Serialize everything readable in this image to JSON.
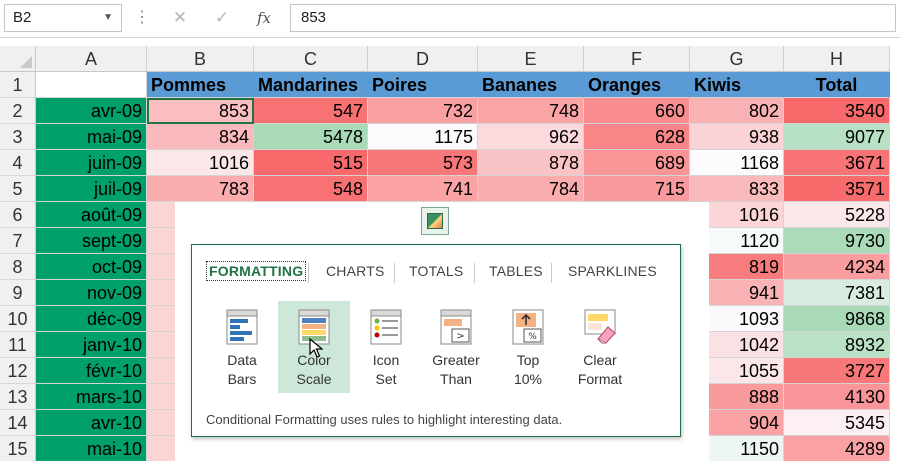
{
  "formula_bar": {
    "name_box": "B2",
    "cancel_glyph": "✕",
    "confirm_glyph": "✓",
    "fx_label": "fx",
    "formula": "853"
  },
  "columns": [
    "A",
    "B",
    "C",
    "D",
    "E",
    "F",
    "G",
    "H"
  ],
  "rows": [
    "1",
    "2",
    "3",
    "4",
    "5",
    "6",
    "7",
    "8",
    "9",
    "10",
    "11",
    "12",
    "13",
    "14",
    "15"
  ],
  "table": {
    "headers": [
      "Pommes",
      "Mandarines",
      "Poires",
      "Bananes",
      "Oranges",
      "Kiwis",
      "Total"
    ],
    "dates": [
      "avr-09",
      "mai-09",
      "juin-09",
      "juil-09",
      "août-09",
      "sept-09",
      "oct-09",
      "nov-09",
      "déc-09",
      "janv-10",
      "févr-10",
      "mars-10",
      "avr-10",
      "mai-10"
    ],
    "data_rows": [
      [
        "853",
        "547",
        "732",
        "748",
        "660",
        "802",
        "3540"
      ],
      [
        "834",
        "5478",
        "1175",
        "962",
        "628",
        "938",
        "9077"
      ],
      [
        "1016",
        "515",
        "573",
        "878",
        "689",
        "1168",
        "3671"
      ],
      [
        "783",
        "548",
        "741",
        "784",
        "715",
        "833",
        "3571"
      ]
    ],
    "kiwis_lower": [
      "1016",
      "1120",
      "819",
      "941",
      "1093",
      "1042",
      "1055",
      "888",
      "904",
      "1150"
    ],
    "total_lower": [
      "5228",
      "9730",
      "4234",
      "7381",
      "9868",
      "8932",
      "3727",
      "4130",
      "5345",
      "4289"
    ]
  },
  "colors": {
    "header_blue": "#5b9bd5",
    "date_green": "#00a06a",
    "accent_green": "#217346",
    "scale_red": "#f8696b",
    "scale_green": "#63be7b"
  },
  "quick_analysis": {
    "button_icon": "quick-analysis-icon",
    "tabs": [
      "FORMATTING",
      "CHARTS",
      "TOTALS",
      "TABLES",
      "SPARKLINES"
    ],
    "options": [
      {
        "label": "Data\nBars",
        "icon": "data-bars-icon"
      },
      {
        "label": "Color\nScale",
        "icon": "color-scale-icon"
      },
      {
        "label": "Icon\nSet",
        "icon": "icon-set-icon"
      },
      {
        "label": "Greater\nThan",
        "icon": "greater-than-icon"
      },
      {
        "label": "Top\n10%",
        "icon": "top-10-icon"
      },
      {
        "label": "Clear\nFormat",
        "icon": "clear-format-icon"
      }
    ],
    "selected_option": "Color Scale",
    "footer": "Conditional Formatting uses rules to highlight interesting data."
  }
}
